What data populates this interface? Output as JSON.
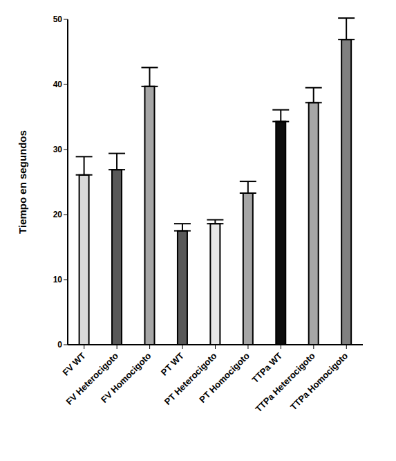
{
  "chart_data": {
    "type": "bar",
    "ylabel": "Tiempo en segundos",
    "categories": [
      "FV WT",
      "FV Heterocigoto",
      "FV Homocigoto",
      "PT WT",
      "PT Heterocigoto",
      "PT Homocigoto",
      "TTPa WT",
      "TTPa Heterocigoto",
      "TTPa Homocigoto"
    ],
    "values": [
      26.1,
      26.9,
      39.7,
      17.5,
      18.6,
      23.3,
      34.3,
      37.2,
      46.9
    ],
    "errors": [
      2.8,
      2.5,
      2.9,
      1.1,
      0.6,
      1.8,
      1.8,
      2.3,
      3.3
    ],
    "colors": [
      "#d9d9d9",
      "#595959",
      "#a6a6a6",
      "#595959",
      "#e6e6e6",
      "#a6a6a6",
      "#0d0d0d",
      "#a6a6a6",
      "#808080"
    ],
    "ylim": [
      0,
      50
    ],
    "yticks": [
      0,
      10,
      20,
      30,
      40,
      50
    ],
    "grid": false
  }
}
